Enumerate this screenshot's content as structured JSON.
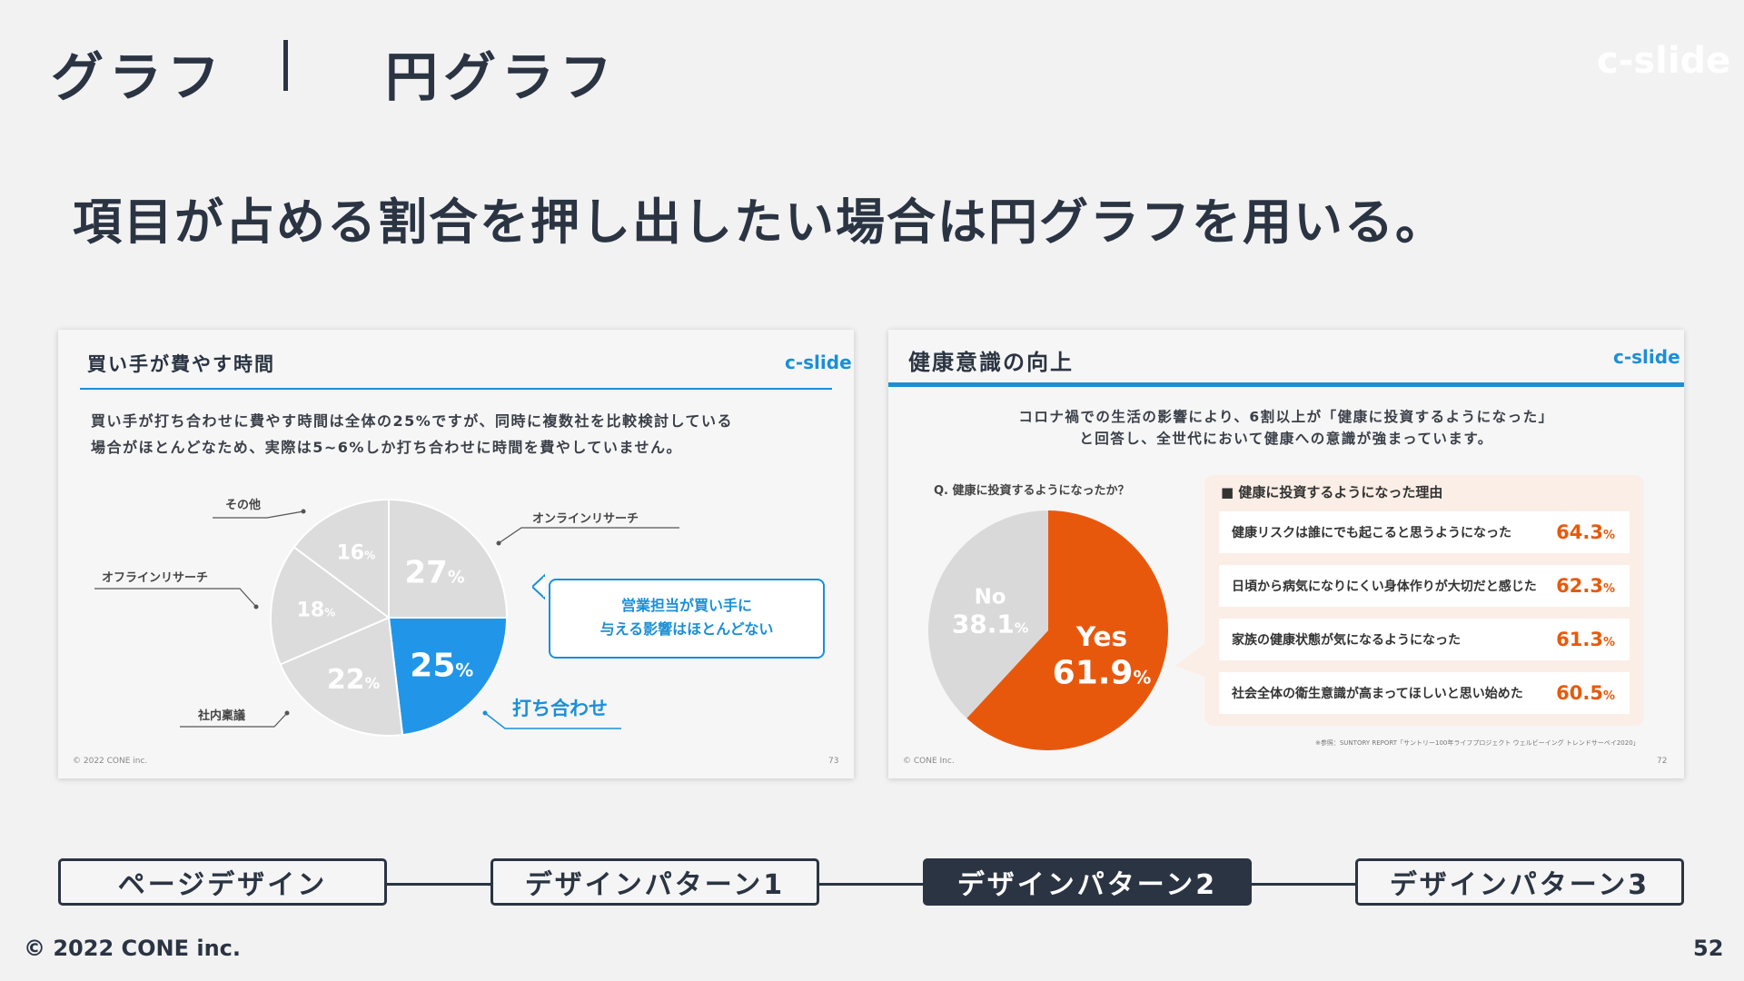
{
  "header": {
    "section": "グラフ",
    "topic": "円グラフ",
    "brand": "c-slide"
  },
  "headline": "項目が占める割合を押し出したい場合は円グラフを用いる。",
  "left_slide": {
    "title": "買い手が費やす時間",
    "brand": "c-slide",
    "description_line1": "買い手が打ち合わせに費やす時間は全体の25%ですが、同時に複数社を比較検討している",
    "description_line2": "場合がほとんどなため、実際は5~6%しか打ち合わせに時間を費やしていません。",
    "callout_line1": "営業担当が買い手に",
    "callout_line2": "与える影響はほとんどない",
    "highlight_label": "打ち合わせ",
    "copyright": "© 2022 CONE inc.",
    "page": "73",
    "chart_data": {
      "type": "pie",
      "categories": [
        "オンラインリサーチ",
        "打ち合わせ",
        "社内稟議",
        "オフラインリサーチ",
        "その他"
      ],
      "values": [
        27,
        25,
        22,
        18,
        16
      ],
      "value_labels": [
        "27",
        "25",
        "22",
        "18",
        "16"
      ],
      "unit": "%",
      "colors": [
        "#dcdcdc",
        "#2196e8",
        "#dcdcdc",
        "#dcdcdc",
        "#dcdcdc"
      ],
      "highlight": "打ち合わせ"
    }
  },
  "right_slide": {
    "title": "健康意識の向上",
    "brand": "c-slide",
    "description_line1": "コロナ禍での生活の影響により、6割以上が「健康に投資するようになった」",
    "description_line2": "と回答し、全世代において健康への意識が強まっています。",
    "question": "Q. 健康に投資するようになったか？",
    "reasons_title": "■ 健康に投資するようになった理由",
    "reasons": [
      {
        "text": "健康リスクは誰にでも起こると思うようになった",
        "value": "64.3",
        "unit": "%"
      },
      {
        "text": "日頃から病気になりにくい身体作りが大切だと感じた",
        "value": "62.3",
        "unit": "%"
      },
      {
        "text": "家族の健康状態が気になるようになった",
        "value": "61.3",
        "unit": "%"
      },
      {
        "text": "社会全体の衛生意識が高まってほしいと思い始めた",
        "value": "60.5",
        "unit": "%"
      }
    ],
    "source": "※参照：SUNTORY REPORT「サントリー100年ライフプロジェクト ウェルビーイング トレンドサーベイ2020」",
    "copyright": "© CONE Inc.",
    "page": "72",
    "chart_data": {
      "type": "pie",
      "categories": [
        "Yes",
        "No"
      ],
      "values": [
        61.9,
        38.1
      ],
      "value_labels": [
        "61.9",
        "38.1"
      ],
      "unit": "%",
      "colors": [
        "#e8580c",
        "#d9d9d9"
      ]
    }
  },
  "nav": {
    "tabs": [
      {
        "label": "ページデザイン",
        "active": false
      },
      {
        "label": "デザインパターン1",
        "active": false
      },
      {
        "label": "デザインパターン2",
        "active": true
      },
      {
        "label": "デザインパターン3",
        "active": false
      }
    ]
  },
  "footer": {
    "copyright": "© 2022 CONE inc.",
    "page_number": "52"
  }
}
